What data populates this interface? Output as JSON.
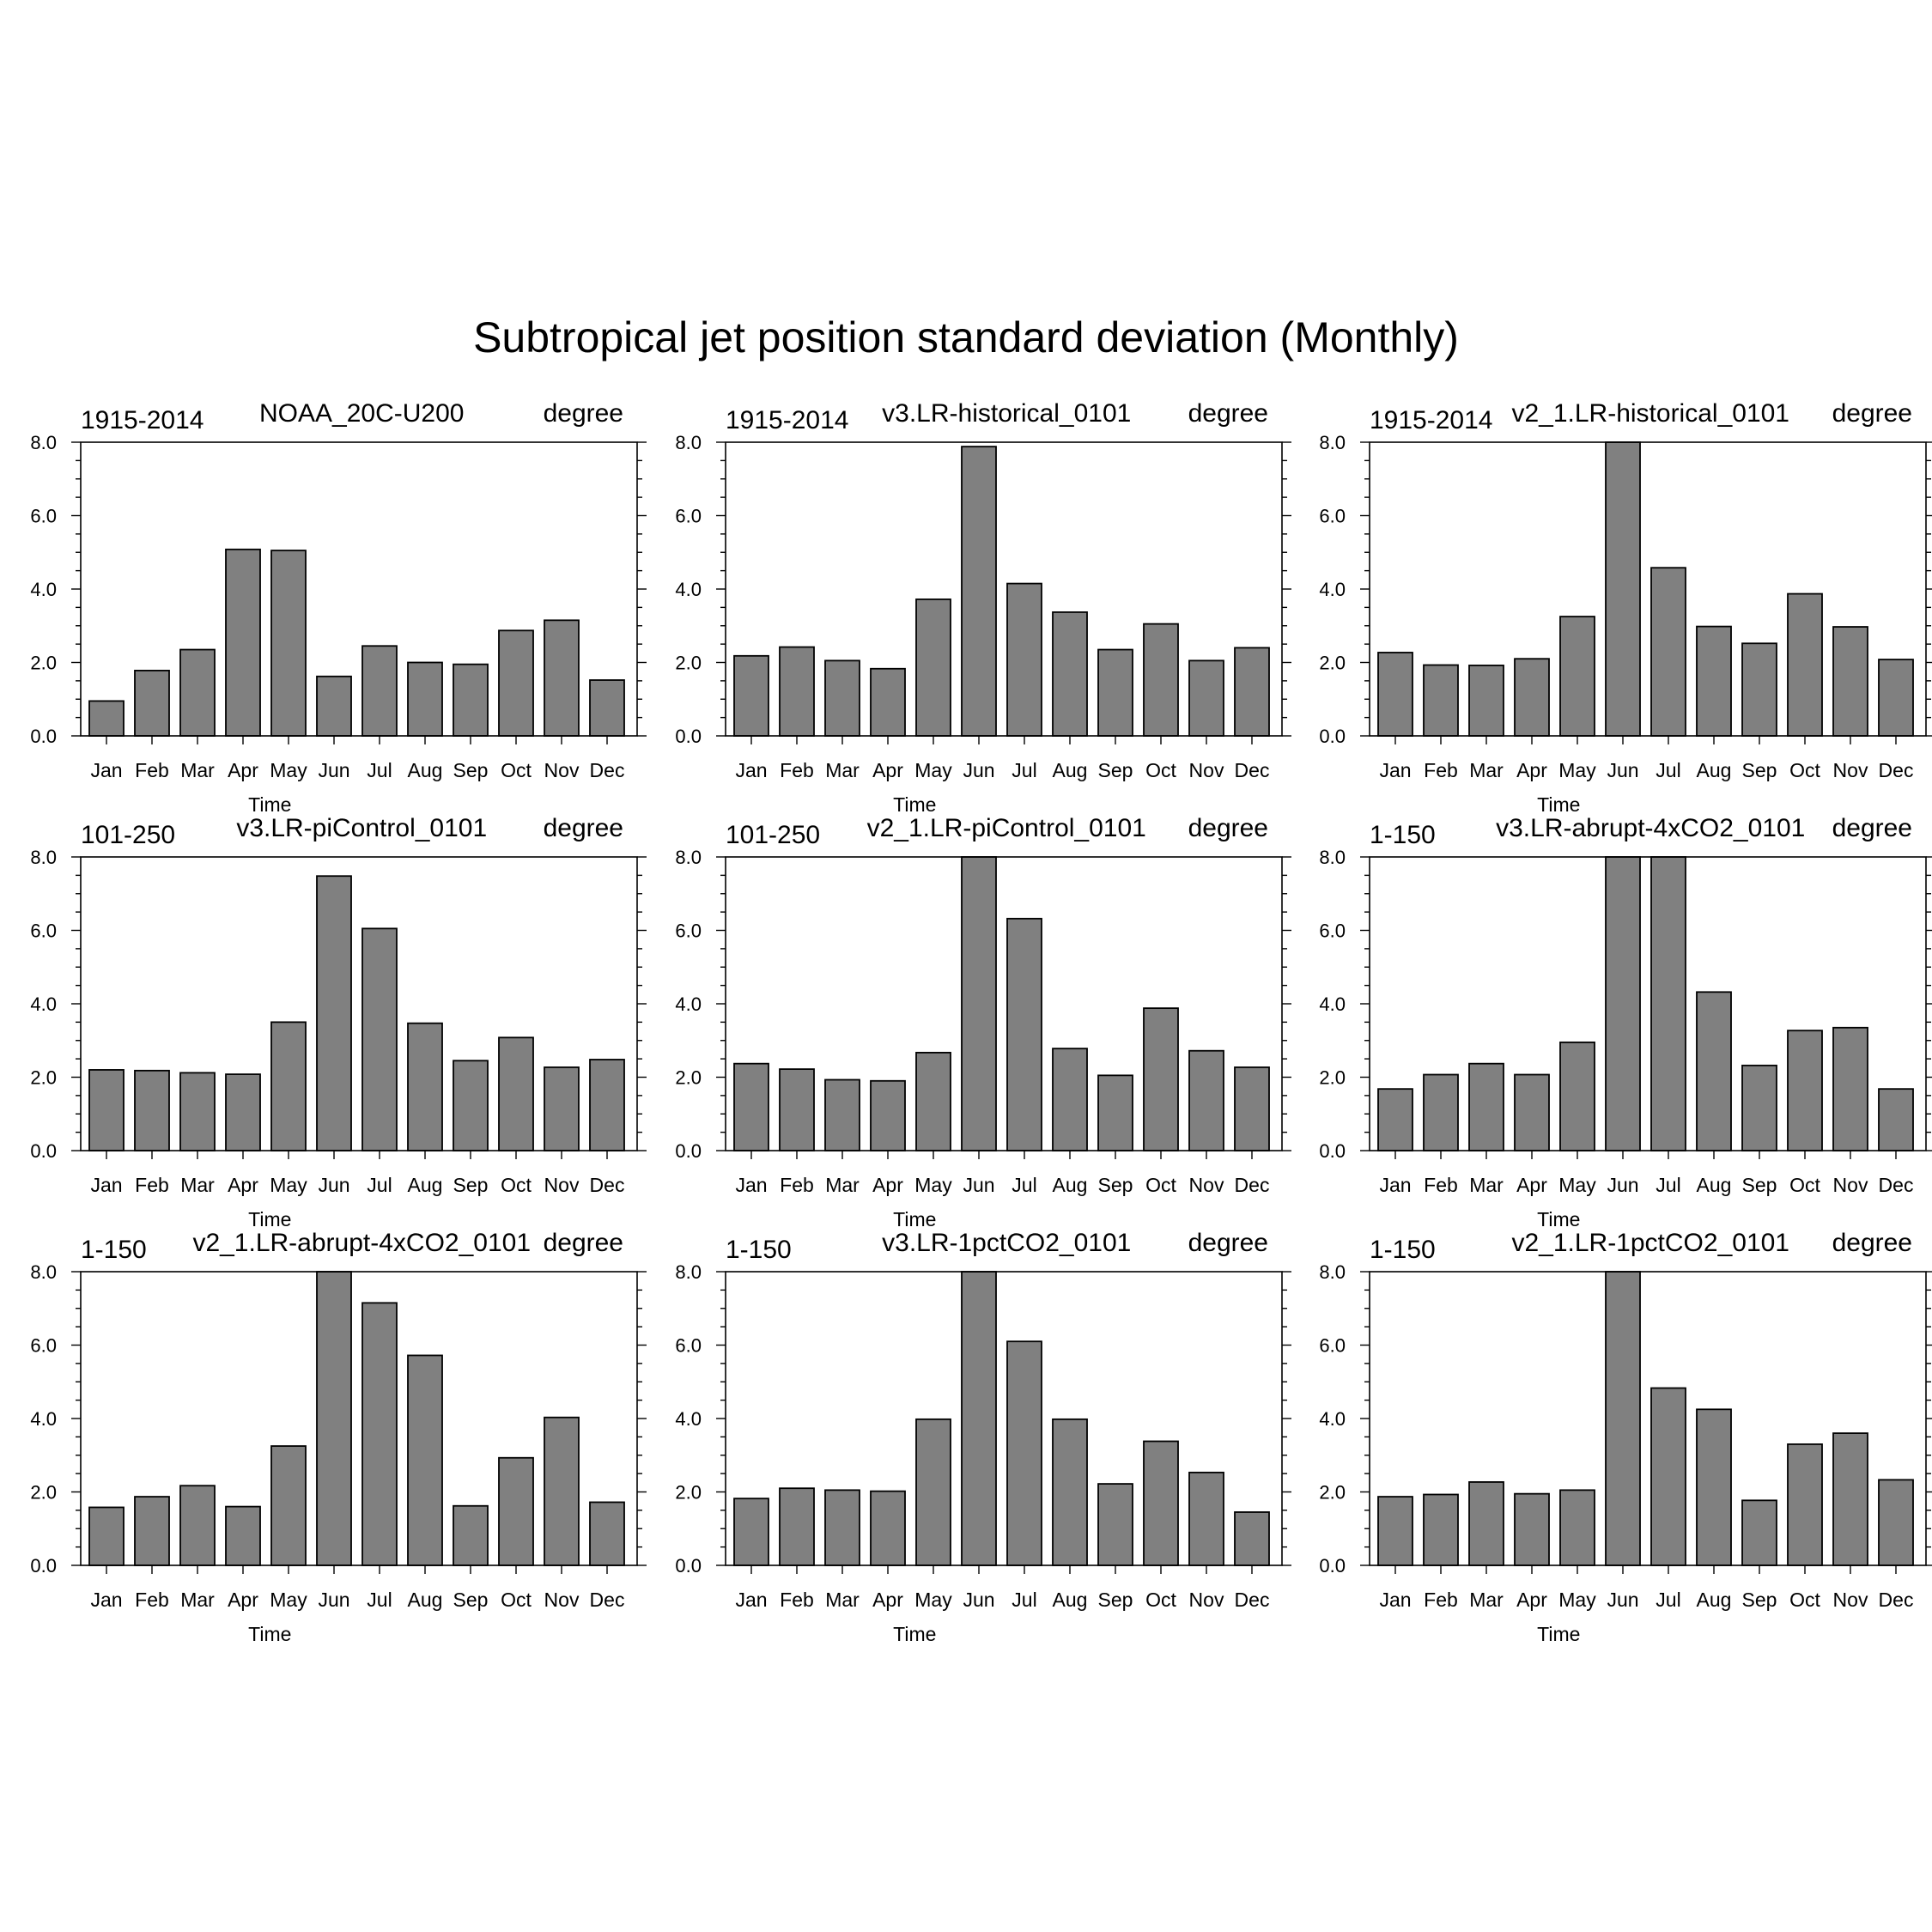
{
  "figure_title": "Subtropical jet position standard deviation (Monthly)",
  "colors": {
    "bar_fill": "#808080",
    "bar_edge": "#000000",
    "axis": "#000000"
  },
  "chart_data": [
    {
      "type": "bar",
      "left_label": "1915-2014",
      "title": "NOAA_20C-U200",
      "right_label": "degree",
      "xlabel": "Time",
      "ylim": [
        0,
        8
      ],
      "yticks": [
        "0.0",
        "2.0",
        "4.0",
        "6.0",
        "8.0"
      ],
      "categories": [
        "Jan",
        "Feb",
        "Mar",
        "Apr",
        "May",
        "Jun",
        "Jul",
        "Aug",
        "Sep",
        "Oct",
        "Nov",
        "Dec"
      ],
      "values": [
        0.95,
        1.78,
        2.35,
        5.08,
        5.05,
        1.62,
        2.45,
        2.0,
        1.95,
        2.87,
        3.15,
        1.52
      ]
    },
    {
      "type": "bar",
      "left_label": "1915-2014",
      "title": "v3.LR-historical_0101",
      "right_label": "degree",
      "xlabel": "Time",
      "ylim": [
        0,
        8
      ],
      "yticks": [
        "0.0",
        "2.0",
        "4.0",
        "6.0",
        "8.0"
      ],
      "categories": [
        "Jan",
        "Feb",
        "Mar",
        "Apr",
        "May",
        "Jun",
        "Jul",
        "Aug",
        "Sep",
        "Oct",
        "Nov",
        "Dec"
      ],
      "values": [
        2.18,
        2.42,
        2.05,
        1.83,
        3.72,
        7.88,
        4.15,
        3.37,
        2.35,
        3.05,
        2.05,
        2.4
      ]
    },
    {
      "type": "bar",
      "left_label": "1915-2014",
      "title": "v2_1.LR-historical_0101",
      "right_label": "degree",
      "xlabel": "Time",
      "ylim": [
        0,
        8
      ],
      "yticks": [
        "0.0",
        "2.0",
        "4.0",
        "6.0",
        "8.0"
      ],
      "categories": [
        "Jan",
        "Feb",
        "Mar",
        "Apr",
        "May",
        "Jun",
        "Jul",
        "Aug",
        "Sep",
        "Oct",
        "Nov",
        "Dec"
      ],
      "values": [
        2.27,
        1.93,
        1.92,
        2.1,
        3.25,
        8.0,
        4.58,
        2.98,
        2.52,
        3.87,
        2.97,
        2.08
      ]
    },
    {
      "type": "bar",
      "left_label": "101-250",
      "title": "v3.LR-piControl_0101",
      "right_label": "degree",
      "xlabel": "Time",
      "ylim": [
        0,
        8
      ],
      "yticks": [
        "0.0",
        "2.0",
        "4.0",
        "6.0",
        "8.0"
      ],
      "categories": [
        "Jan",
        "Feb",
        "Mar",
        "Apr",
        "May",
        "Jun",
        "Jul",
        "Aug",
        "Sep",
        "Oct",
        "Nov",
        "Dec"
      ],
      "values": [
        2.2,
        2.18,
        2.12,
        2.08,
        3.5,
        7.48,
        6.05,
        3.47,
        2.45,
        3.08,
        2.27,
        2.48
      ]
    },
    {
      "type": "bar",
      "left_label": "101-250",
      "title": "v2_1.LR-piControl_0101",
      "right_label": "degree",
      "xlabel": "Time",
      "ylim": [
        0,
        8
      ],
      "yticks": [
        "0.0",
        "2.0",
        "4.0",
        "6.0",
        "8.0"
      ],
      "categories": [
        "Jan",
        "Feb",
        "Mar",
        "Apr",
        "May",
        "Jun",
        "Jul",
        "Aug",
        "Sep",
        "Oct",
        "Nov",
        "Dec"
      ],
      "values": [
        2.37,
        2.22,
        1.93,
        1.9,
        2.67,
        8.0,
        6.32,
        2.78,
        2.05,
        3.88,
        2.72,
        2.27
      ]
    },
    {
      "type": "bar",
      "left_label": "1-150",
      "title": "v3.LR-abrupt-4xCO2_0101",
      "right_label": "degree",
      "xlabel": "Time",
      "ylim": [
        0,
        8
      ],
      "yticks": [
        "0.0",
        "2.0",
        "4.0",
        "6.0",
        "8.0"
      ],
      "categories": [
        "Jan",
        "Feb",
        "Mar",
        "Apr",
        "May",
        "Jun",
        "Jul",
        "Aug",
        "Sep",
        "Oct",
        "Nov",
        "Dec"
      ],
      "values": [
        1.68,
        2.07,
        2.37,
        2.07,
        2.95,
        8.0,
        8.0,
        4.32,
        2.32,
        3.27,
        3.35,
        1.68
      ]
    },
    {
      "type": "bar",
      "left_label": "1-150",
      "title": "v2_1.LR-abrupt-4xCO2_0101",
      "right_label": "degree",
      "xlabel": "Time",
      "ylim": [
        0,
        8
      ],
      "yticks": [
        "0.0",
        "2.0",
        "4.0",
        "6.0",
        "8.0"
      ],
      "categories": [
        "Jan",
        "Feb",
        "Mar",
        "Apr",
        "May",
        "Jun",
        "Jul",
        "Aug",
        "Sep",
        "Oct",
        "Nov",
        "Dec"
      ],
      "values": [
        1.58,
        1.87,
        2.17,
        1.6,
        3.25,
        8.0,
        7.15,
        5.72,
        1.62,
        2.93,
        4.03,
        1.72
      ]
    },
    {
      "type": "bar",
      "left_label": "1-150",
      "title": "v3.LR-1pctCO2_0101",
      "right_label": "degree",
      "xlabel": "Time",
      "ylim": [
        0,
        8
      ],
      "yticks": [
        "0.0",
        "2.0",
        "4.0",
        "6.0",
        "8.0"
      ],
      "categories": [
        "Jan",
        "Feb",
        "Mar",
        "Apr",
        "May",
        "Jun",
        "Jul",
        "Aug",
        "Sep",
        "Oct",
        "Nov",
        "Dec"
      ],
      "values": [
        1.82,
        2.1,
        2.05,
        2.02,
        3.98,
        8.0,
        6.1,
        3.98,
        2.22,
        3.38,
        2.53,
        1.45
      ]
    },
    {
      "type": "bar",
      "left_label": "1-150",
      "title": "v2_1.LR-1pctCO2_0101",
      "right_label": "degree",
      "xlabel": "Time",
      "ylim": [
        0,
        8
      ],
      "yticks": [
        "0.0",
        "2.0",
        "4.0",
        "6.0",
        "8.0"
      ],
      "categories": [
        "Jan",
        "Feb",
        "Mar",
        "Apr",
        "May",
        "Jun",
        "Jul",
        "Aug",
        "Sep",
        "Oct",
        "Nov",
        "Dec"
      ],
      "values": [
        1.87,
        1.93,
        2.27,
        1.95,
        2.05,
        8.0,
        4.83,
        4.25,
        1.77,
        3.3,
        3.6,
        2.33
      ]
    }
  ]
}
